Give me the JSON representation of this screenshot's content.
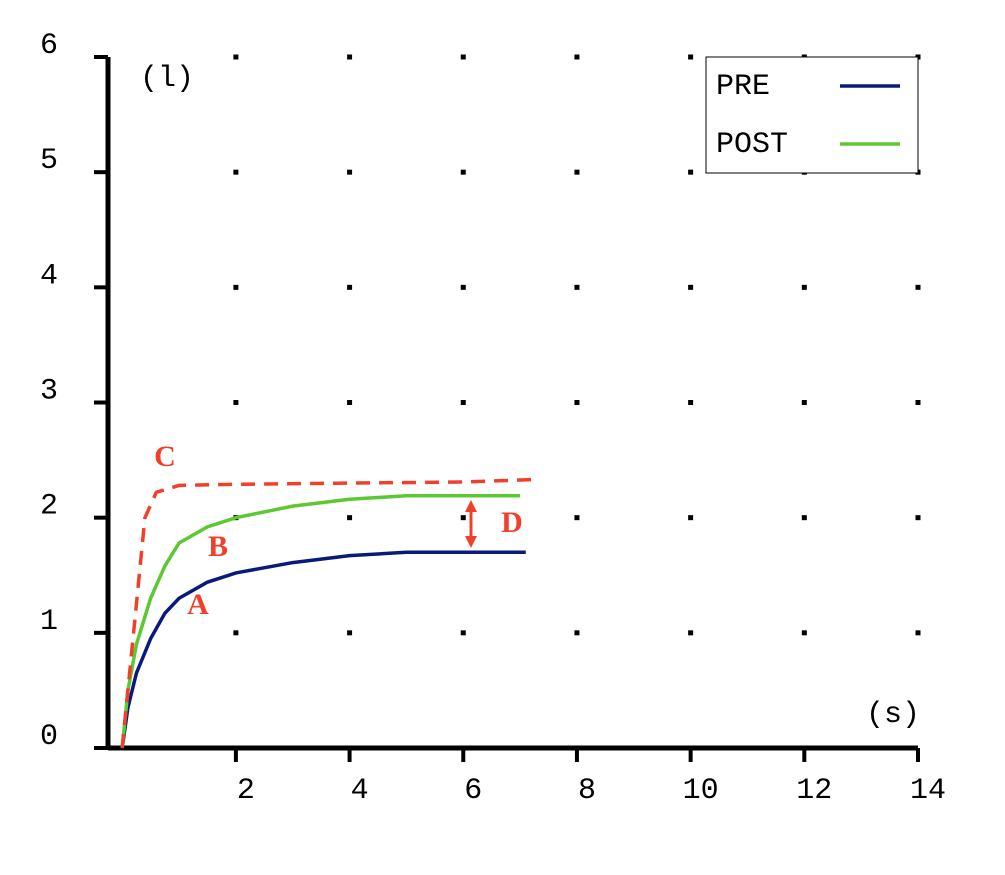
{
  "chart_data": {
    "type": "line",
    "x_label": "(s)",
    "y_label": "(l)",
    "xlim": [
      -0.25,
      14
    ],
    "ylim": [
      0,
      6
    ],
    "xticks": [
      2,
      4,
      6,
      8,
      10,
      12,
      14
    ],
    "yticks": [
      0,
      1,
      2,
      3,
      4,
      5,
      6
    ],
    "grid": "dots",
    "legend": "top-right",
    "series": [
      {
        "name": "PRE",
        "color": "#0a1a7a",
        "x": [
          0,
          0.1,
          0.25,
          0.5,
          0.75,
          1,
          1.5,
          2,
          3,
          4,
          5,
          6,
          7.1
        ],
        "values": [
          0,
          0.35,
          0.65,
          0.95,
          1.17,
          1.3,
          1.44,
          1.52,
          1.61,
          1.67,
          1.7,
          1.7,
          1.7
        ]
      },
      {
        "name": "POST",
        "color": "#5cc832",
        "x": [
          0,
          0.1,
          0.25,
          0.5,
          0.75,
          1,
          1.5,
          2,
          3,
          4,
          5,
          6,
          7
        ],
        "values": [
          0,
          0.5,
          0.9,
          1.3,
          1.58,
          1.78,
          1.92,
          2.0,
          2.1,
          2.16,
          2.19,
          2.19,
          2.19
        ]
      },
      {
        "color": "#f0402a",
        "dashed": true,
        "x": [
          0,
          0.2,
          0.4,
          0.6,
          1,
          2,
          4,
          6,
          7.2
        ],
        "values": [
          0,
          1.0,
          2.0,
          2.22,
          2.28,
          2.29,
          2.3,
          2.31,
          2.33
        ]
      }
    ],
    "annotations": [
      "A",
      "B",
      "C",
      "D"
    ]
  }
}
